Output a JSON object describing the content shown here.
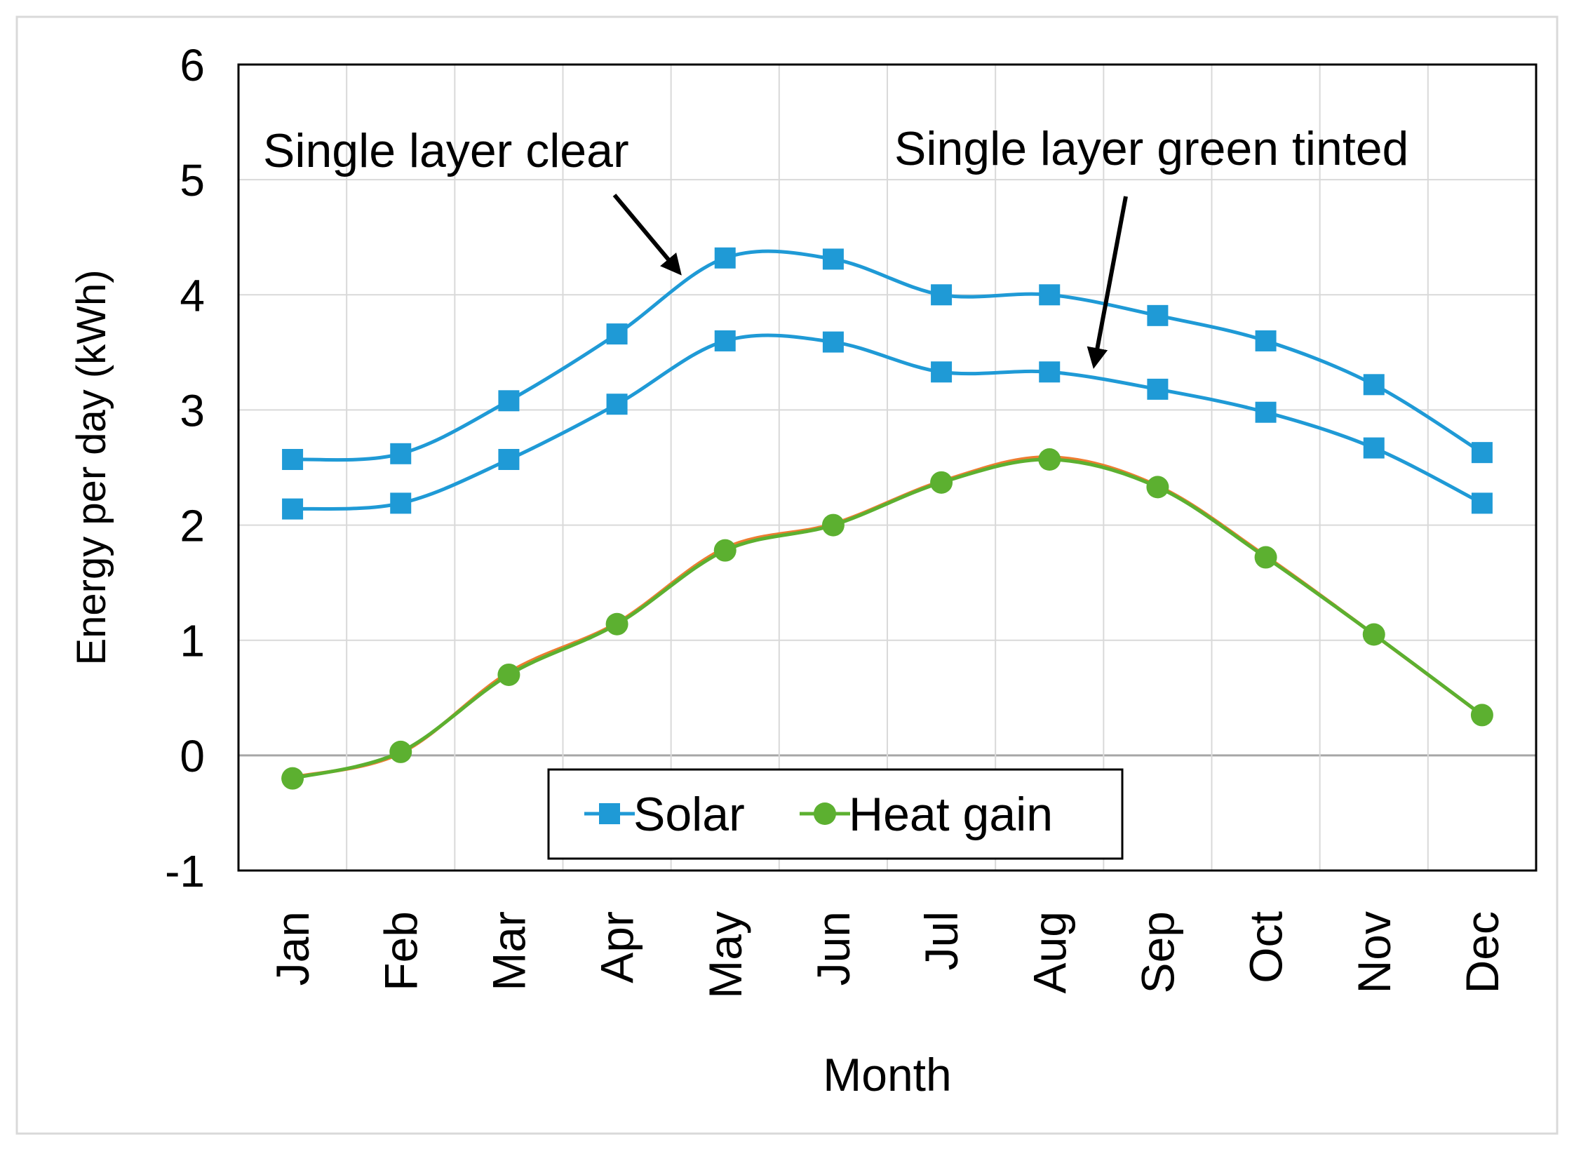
{
  "chart_data": {
    "type": "line",
    "title": "",
    "xlabel": "Month",
    "ylabel": "Energy per day (kWh)",
    "ylim": [
      -1,
      6
    ],
    "yticks": [
      -1,
      0,
      1,
      2,
      3,
      4,
      5,
      6
    ],
    "grid": true,
    "categories": [
      "Jan",
      "Feb",
      "Mar",
      "Apr",
      "May",
      "Jun",
      "Jul",
      "Aug",
      "Sep",
      "Oct",
      "Nov",
      "Dec"
    ],
    "series": [
      {
        "name": "Solar",
        "group": "Single layer clear",
        "color": "#1f9ad6",
        "marker": "square",
        "values": [
          2.57,
          2.62,
          3.08,
          3.66,
          4.32,
          4.31,
          4.0,
          4.0,
          3.82,
          3.6,
          3.22,
          2.63
        ]
      },
      {
        "name": "Solar",
        "group": "Single layer green tinted",
        "color": "#1f9ad6",
        "marker": "square",
        "values": [
          2.14,
          2.19,
          2.57,
          3.05,
          3.6,
          3.59,
          3.33,
          3.33,
          3.18,
          2.98,
          2.67,
          2.19
        ]
      },
      {
        "name": "Heat gain",
        "group": "Single layer clear",
        "color": "#ed7d31",
        "marker": "none",
        "values": [
          -0.19,
          0.02,
          0.72,
          1.15,
          1.8,
          2.01,
          2.38,
          2.59,
          2.34,
          1.73,
          1.05,
          0.35
        ]
      },
      {
        "name": "Heat gain",
        "group": "Single layer green tinted",
        "color": "#5cb030",
        "marker": "circle",
        "values": [
          -0.2,
          0.03,
          0.7,
          1.14,
          1.78,
          2.0,
          2.37,
          2.57,
          2.33,
          1.72,
          1.05,
          0.35
        ]
      }
    ],
    "legend": {
      "position": "bottom-center",
      "entries": [
        {
          "label": "Solar",
          "color": "#1f9ad6",
          "marker": "square"
        },
        {
          "label": "Heat gain",
          "color": "#5cb030",
          "marker": "circle"
        }
      ]
    },
    "annotations": [
      {
        "text": "Single layer clear",
        "points_to": {
          "category": "May",
          "value": 4.1
        }
      },
      {
        "text": "Single layer green tinted",
        "points_to": {
          "category": "Aug",
          "value": 3.33
        }
      }
    ]
  }
}
